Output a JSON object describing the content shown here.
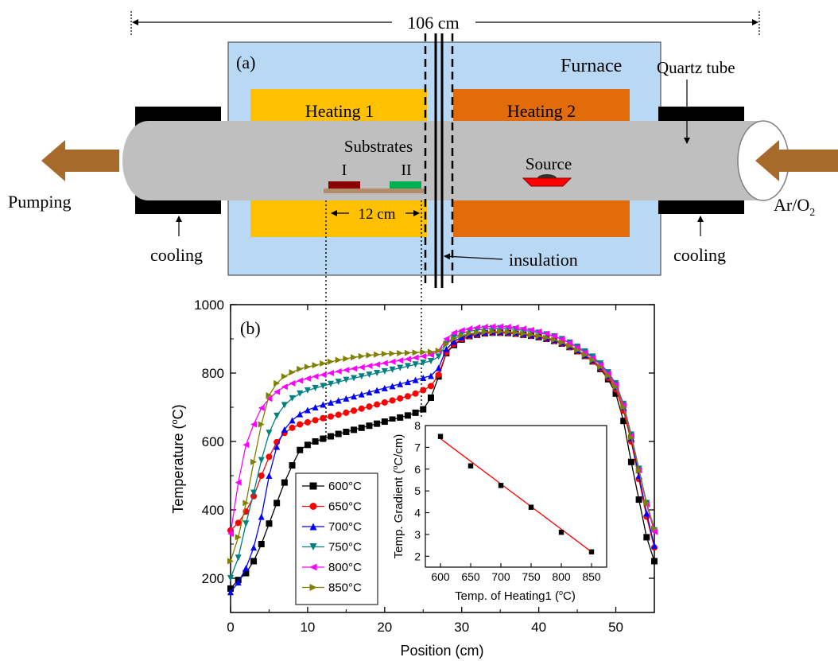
{
  "diagram": {
    "length_label": "106 cm",
    "panel_a_label": "(a)",
    "furnace_label": "Furnace",
    "quartz_tube_label": "Quartz tube",
    "heating1_label": "Heating 1",
    "heating2_label": "Heating 2",
    "substrates_label": "Substrates",
    "substrate_I_label": "I",
    "substrate_II_label": "II",
    "source_label": "Source",
    "spacing_label": "12 cm",
    "pumping_label": "Pumping",
    "gas_label_main": "Ar/O",
    "gas_label_sub": "2",
    "cooling_left_label": "cooling",
    "cooling_right_label": "cooling",
    "insulation_label": "insulation",
    "colors": {
      "furnace_fill": "#b8d8f4",
      "heating1": "#ffc000",
      "heating2": "#e36c0a",
      "tube": "#bfbfbf",
      "arrow": "#a66a2b",
      "substrate_I": "#8b0000",
      "substrate_II": "#00b050",
      "boat": "#ff0000",
      "plate": "#b38a6a"
    }
  },
  "chart_data": [
    {
      "panel_label": "(b)",
      "type": "line",
      "xlabel": "Position (cm)",
      "ylabel_main": "Temperature (",
      "ylabel_sup": "o",
      "ylabel_end": "C)",
      "xlim": [
        0,
        55
      ],
      "ylim": [
        100,
        1000
      ],
      "x_ticks": [
        0,
        10,
        20,
        30,
        40,
        50
      ],
      "y_ticks": [
        200,
        400,
        600,
        800,
        1000
      ],
      "legend_location": "lower-left",
      "x": [
        0,
        1,
        2,
        3,
        4,
        5,
        6,
        7,
        8,
        9,
        10,
        11,
        12,
        13,
        14,
        15,
        16,
        17,
        18,
        19,
        20,
        21,
        22,
        23,
        24,
        25,
        26,
        27,
        28,
        29,
        30,
        31,
        32,
        33,
        34,
        35,
        36,
        37,
        38,
        39,
        40,
        41,
        42,
        43,
        44,
        45,
        46,
        47,
        48,
        49,
        50,
        51,
        52,
        53,
        54,
        55
      ],
      "series": [
        {
          "name": "600°C",
          "color": "#000000",
          "marker": "square",
          "values": [
            170,
            195,
            215,
            250,
            300,
            360,
            420,
            480,
            530,
            575,
            590,
            600,
            608,
            615,
            622,
            628,
            634,
            640,
            646,
            652,
            658,
            664,
            670,
            676,
            684,
            694,
            728,
            790,
            858,
            882,
            898,
            908,
            912,
            916,
            918,
            918,
            917,
            915,
            912,
            909,
            905,
            900,
            894,
            886,
            876,
            864,
            850,
            834,
            812,
            782,
            740,
            660,
            540,
            430,
            320,
            250
          ]
        },
        {
          "name": "650°C",
          "color": "#ff0000",
          "marker": "circle",
          "values": [
            340,
            362,
            395,
            440,
            500,
            555,
            598,
            625,
            640,
            650,
            656,
            662,
            668,
            673,
            678,
            684,
            690,
            696,
            702,
            708,
            714,
            720,
            726,
            732,
            740,
            750,
            762,
            795,
            860,
            885,
            900,
            908,
            912,
            916,
            918,
            918,
            917,
            915,
            912,
            909,
            905,
            900,
            894,
            886,
            876,
            864,
            850,
            834,
            814,
            786,
            752,
            690,
            600,
            490,
            380,
            290
          ]
        },
        {
          "name": "700°C",
          "color": "#0000ff",
          "marker": "triangle-up",
          "values": [
            160,
            188,
            230,
            290,
            380,
            500,
            585,
            635,
            662,
            680,
            692,
            700,
            708,
            714,
            720,
            726,
            732,
            738,
            744,
            750,
            756,
            762,
            768,
            774,
            780,
            786,
            792,
            815,
            870,
            892,
            905,
            912,
            916,
            919,
            921,
            921,
            920,
            918,
            915,
            912,
            908,
            903,
            897,
            889,
            879,
            867,
            853,
            838,
            818,
            792,
            760,
            700,
            610,
            500,
            390,
            295
          ]
        },
        {
          "name": "750°C",
          "color": "#008080",
          "marker": "triangle-down",
          "values": [
            200,
            260,
            360,
            450,
            545,
            625,
            675,
            706,
            726,
            740,
            749,
            756,
            762,
            768,
            774,
            780,
            785,
            790,
            795,
            800,
            805,
            810,
            815,
            820,
            825,
            830,
            835,
            848,
            885,
            905,
            915,
            922,
            926,
            929,
            931,
            931,
            930,
            928,
            925,
            922,
            918,
            913,
            907,
            899,
            889,
            877,
            863,
            848,
            828,
            802,
            770,
            710,
            620,
            520,
            420,
            340
          ]
        },
        {
          "name": "800°C",
          "color": "#ff00ff",
          "marker": "triangle-left",
          "values": [
            330,
            480,
            590,
            650,
            698,
            725,
            745,
            760,
            770,
            778,
            784,
            790,
            795,
            800,
            805,
            809,
            813,
            817,
            821,
            825,
            829,
            833,
            837,
            841,
            845,
            849,
            853,
            865,
            900,
            918,
            925,
            930,
            933,
            935,
            936,
            936,
            935,
            933,
            930,
            926,
            921,
            915,
            908,
            899,
            888,
            875,
            860,
            844,
            824,
            798,
            766,
            706,
            616,
            516,
            416,
            336
          ]
        },
        {
          "name": "850°C",
          "color": "#808000",
          "marker": "triangle-right",
          "values": [
            250,
            320,
            420,
            540,
            650,
            735,
            770,
            790,
            802,
            812,
            818,
            823,
            828,
            833,
            838,
            842,
            846,
            849,
            852,
            854,
            856,
            857,
            858,
            859,
            860,
            861,
            862,
            865,
            885,
            900,
            910,
            915,
            918,
            920,
            921,
            921,
            920,
            918,
            915,
            912,
            908,
            903,
            897,
            889,
            879,
            867,
            853,
            838,
            818,
            792,
            760,
            700,
            612,
            515,
            420,
            345
          ]
        }
      ]
    },
    {
      "type": "scatter",
      "xlabel_main": "Temp. of Heating1 (",
      "xlabel_sup": "o",
      "xlabel_end": "C)",
      "ylabel_main": "Temp. Gradient (",
      "ylabel_sup": "o",
      "ylabel_end": "C/cm)",
      "xlim": [
        575,
        875
      ],
      "ylim": [
        1.5,
        8
      ],
      "x_ticks": [
        600,
        650,
        700,
        750,
        800,
        850
      ],
      "y_ticks": [
        2,
        3,
        4,
        5,
        6,
        7,
        8
      ],
      "points": {
        "x": [
          600,
          650,
          700,
          750,
          800,
          850
        ],
        "y": [
          7.5,
          6.15,
          5.25,
          4.25,
          3.1,
          2.2
        ]
      },
      "fit_line": {
        "x": [
          600,
          850
        ],
        "y": [
          7.4,
          2.2
        ],
        "color": "#ff0000"
      }
    }
  ]
}
